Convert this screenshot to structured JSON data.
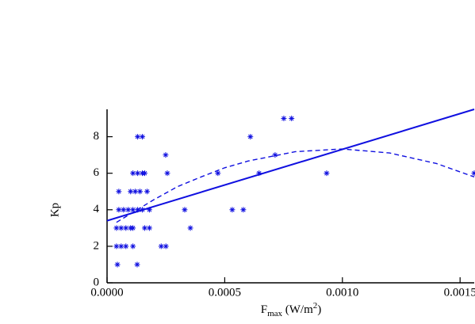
{
  "chart_data": {
    "type": "scatter",
    "ylabel": "Kp",
    "xlabel": {
      "base": "F",
      "sub": "max",
      "rest": " (W/m",
      "sup": "2",
      "end": ")"
    },
    "xlim": [
      0,
      0.00156
    ],
    "ylim": [
      0,
      9.5
    ],
    "xticks": [
      {
        "value": 0,
        "label": "0.0000"
      },
      {
        "value": 0.0005,
        "label": "0.0005"
      },
      {
        "value": 0.001,
        "label": "0.0010"
      },
      {
        "value": 0.0015,
        "label": "0.0015"
      }
    ],
    "yticks": [
      0,
      2,
      4,
      6,
      8
    ],
    "color": "#1010e0",
    "points": {
      "x": [
        4.4e-05,
        0.000128,
        4e-05,
        6e-05,
        8e-05,
        0.00011,
        0.00023,
        0.00025,
        4e-05,
        6e-05,
        8e-05,
        0.0001,
        0.00011,
        0.00016,
        0.00018,
        0.000354,
        5e-05,
        7e-05,
        9e-05,
        0.00011,
        0.00013,
        0.00015,
        0.00018,
        0.00033,
        0.000532,
        0.000579,
        5e-05,
        0.0001,
        0.00012,
        0.00014,
        0.00017,
        0.00011,
        0.00013,
        0.00015,
        0.00016,
        0.000256,
        0.000471,
        0.000646,
        0.000933,
        0.00156,
        0.000249,
        0.000714,
        0.00013,
        0.00015,
        0.000609,
        0.000751,
        0.000784
      ],
      "values": [
        1,
        1,
        2,
        2,
        2,
        2,
        2,
        2,
        3,
        3,
        3,
        3,
        3,
        3,
        3,
        3,
        4,
        4,
        4,
        4,
        4,
        4,
        4,
        4,
        4,
        4,
        5,
        5,
        5,
        5,
        5,
        6,
        6,
        6,
        6,
        6,
        6,
        6,
        6,
        6,
        7,
        7,
        8,
        8,
        8,
        9,
        9
      ]
    },
    "lines": [
      {
        "style": "solid",
        "x": [
          0,
          0.00156
        ],
        "values": [
          3.4,
          9.5
        ]
      },
      {
        "style": "dashed",
        "x": [
          4e-05,
          0.0002,
          0.0003,
          0.0004,
          0.0005,
          0.0006,
          0.0008,
          0.001,
          0.0012,
          0.0014,
          0.00156
        ],
        "values": [
          3.31,
          4.56,
          5.27,
          5.8,
          6.3,
          6.67,
          7.18,
          7.33,
          7.11,
          6.53,
          5.8
        ]
      }
    ]
  }
}
